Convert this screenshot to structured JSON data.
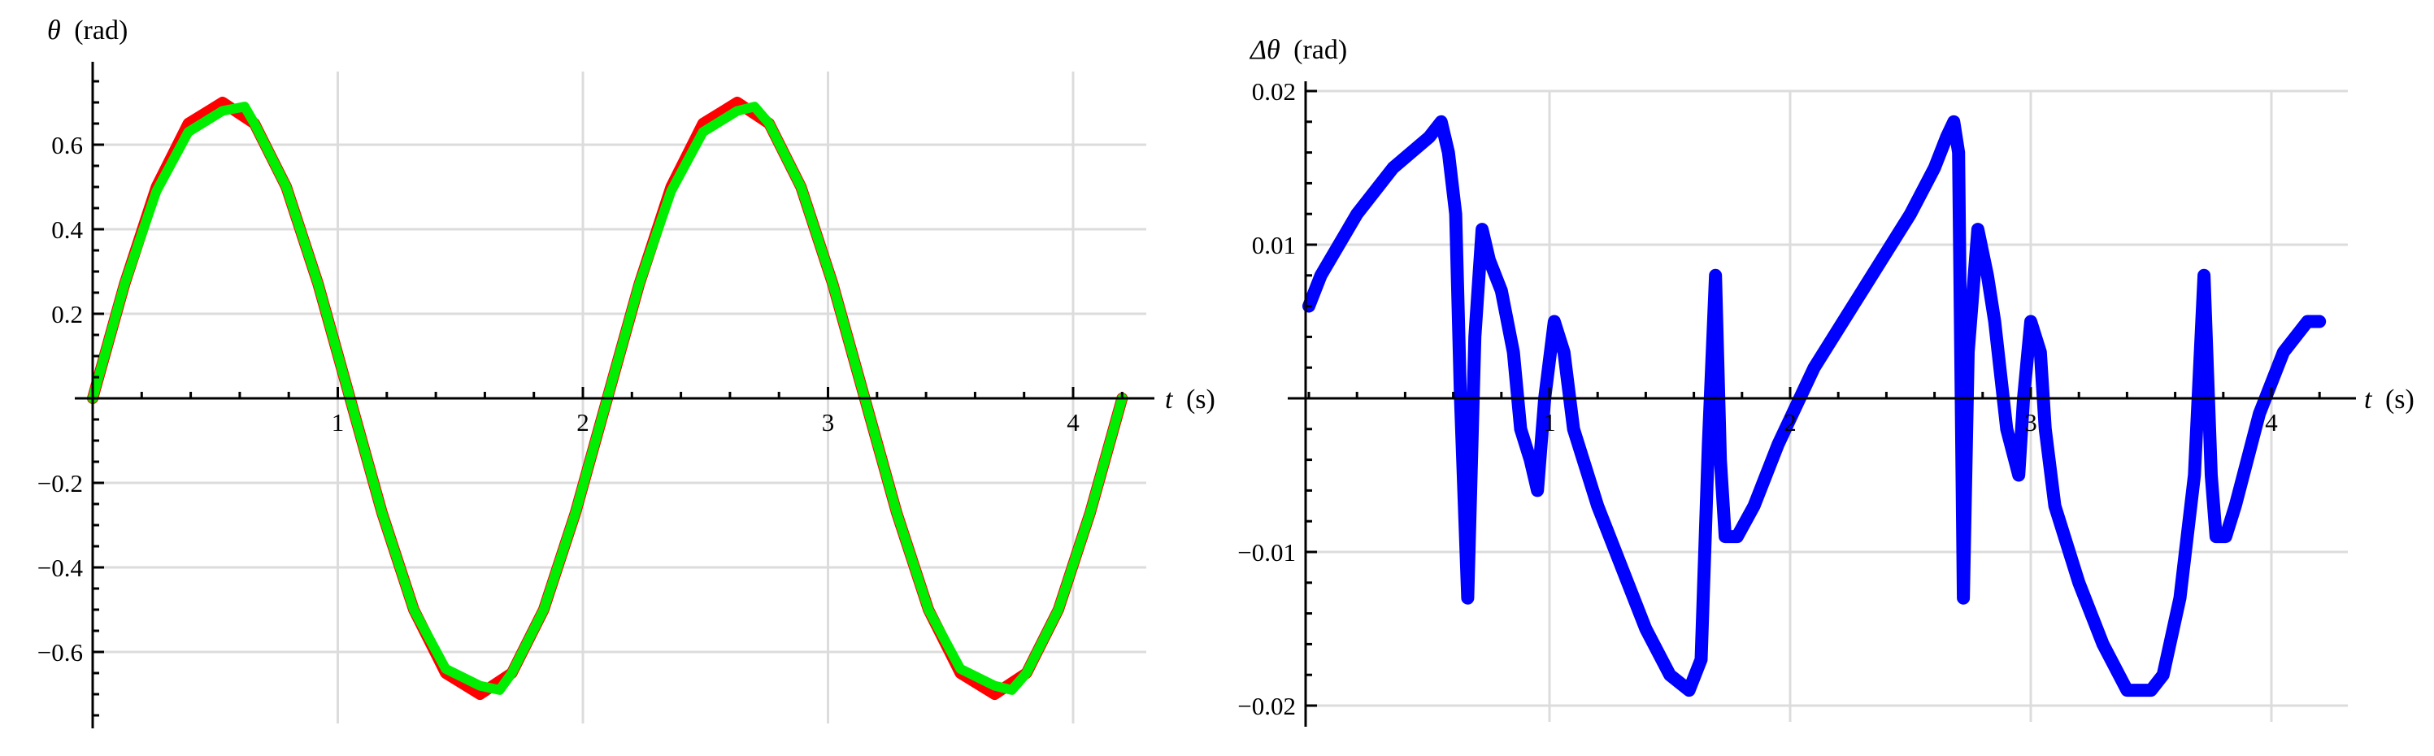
{
  "chart_data": [
    {
      "type": "line",
      "title": "",
      "ylabel_symbol": "θ",
      "ylabel_unit": "(rad)",
      "xlabel_symbol": "t",
      "xlabel_unit": "(s)",
      "xlim": [
        0,
        4.25
      ],
      "ylim": [
        -0.76,
        0.76
      ],
      "x_ticks": [
        1,
        2,
        3,
        4
      ],
      "x_tick_labels": [
        "1",
        "2",
        "3",
        "4"
      ],
      "y_ticks": [
        -0.6,
        -0.4,
        -0.2,
        0.2,
        0.4,
        0.6
      ],
      "y_tick_labels": [
        "−0.6",
        "−0.4",
        "−0.2",
        "0.2",
        "0.4",
        "0.6"
      ],
      "grid": true,
      "series": [
        {
          "color": "#ff0000",
          "x": [
            0,
            0.13,
            0.26,
            0.39,
            0.53,
            0.66,
            0.79,
            0.92,
            1.05,
            1.18,
            1.31,
            1.44,
            1.58,
            1.71,
            1.84,
            1.97,
            2.1,
            2.23,
            2.36,
            2.49,
            2.63,
            2.76,
            2.89,
            3.02,
            3.15,
            3.28,
            3.41,
            3.54,
            3.68,
            3.81,
            3.94,
            4.07,
            4.2
          ],
          "y": [
            0,
            0.27,
            0.5,
            0.65,
            0.7,
            0.65,
            0.5,
            0.27,
            0,
            -0.27,
            -0.5,
            -0.65,
            -0.7,
            -0.65,
            -0.5,
            -0.27,
            0,
            0.27,
            0.5,
            0.65,
            0.7,
            0.65,
            0.5,
            0.27,
            0,
            -0.27,
            -0.5,
            -0.65,
            -0.7,
            -0.65,
            -0.5,
            -0.27,
            0
          ]
        },
        {
          "color": "#00ee00",
          "x": [
            0,
            0.13,
            0.26,
            0.39,
            0.53,
            0.62,
            0.66,
            0.79,
            0.92,
            1.05,
            1.18,
            1.31,
            1.44,
            1.58,
            1.66,
            1.71,
            1.84,
            1.97,
            2.1,
            2.23,
            2.36,
            2.49,
            2.63,
            2.7,
            2.76,
            2.89,
            3.02,
            3.15,
            3.28,
            3.41,
            3.54,
            3.68,
            3.75,
            3.81,
            3.94,
            4.07,
            4.2
          ],
          "y": [
            0,
            0.27,
            0.49,
            0.63,
            0.68,
            0.69,
            0.65,
            0.5,
            0.27,
            0,
            -0.27,
            -0.5,
            -0.64,
            -0.68,
            -0.69,
            -0.65,
            -0.5,
            -0.27,
            0,
            0.27,
            0.49,
            0.63,
            0.68,
            0.69,
            0.65,
            0.5,
            0.27,
            0,
            -0.27,
            -0.5,
            -0.64,
            -0.68,
            -0.69,
            -0.65,
            -0.5,
            -0.27,
            0
          ]
        }
      ]
    },
    {
      "type": "line",
      "title": "",
      "ylabel_symbol": "Δθ",
      "ylabel_unit": "(rad)",
      "xlabel_symbol": "t",
      "xlabel_unit": "(s)",
      "xlim": [
        -1.0,
        4.25
      ],
      "ylim": [
        -0.0222,
        0.02
      ],
      "x_ticks": [
        1,
        2,
        3,
        4
      ],
      "x_tick_labels": [
        "1",
        "2",
        "3",
        "4"
      ],
      "y_ticks": [
        -0.02,
        -0.01,
        0.01,
        0.02
      ],
      "y_tick_labels": [
        "−0.02",
        "−0.01",
        "0.01",
        "0.02"
      ],
      "grid": true,
      "series": [
        {
          "color": "#0000ff",
          "x": [
            0,
            0.05,
            0.2,
            0.35,
            0.5,
            0.55,
            0.58,
            0.61,
            0.63,
            0.66,
            0.69,
            0.72,
            0.75,
            0.8,
            0.85,
            0.88,
            0.92,
            0.95,
            0.98,
            1.02,
            1.06,
            1.1,
            1.2,
            1.3,
            1.4,
            1.5,
            1.58,
            1.63,
            1.66,
            1.69,
            1.71,
            1.73,
            1.78,
            1.85,
            1.95,
            2.1,
            2.3,
            2.5,
            2.6,
            2.65,
            2.68,
            2.7,
            2.72,
            2.74,
            2.78,
            2.82,
            2.85,
            2.9,
            2.95,
            2.97,
            3.0,
            3.04,
            3.06,
            3.1,
            3.2,
            3.3,
            3.4,
            3.5,
            3.55,
            3.62,
            3.68,
            3.72,
            3.75,
            3.77,
            3.79,
            3.81,
            3.85,
            3.9,
            3.95,
            4.05,
            4.15,
            4.2
          ],
          "y": [
            0.006,
            0.008,
            0.012,
            0.015,
            0.017,
            0.018,
            0.016,
            0.012,
            0.0,
            -0.013,
            0.004,
            0.011,
            0.009,
            0.007,
            0.003,
            -0.002,
            -0.004,
            -0.006,
            0.0,
            0.005,
            0.003,
            -0.002,
            -0.007,
            -0.011,
            -0.015,
            -0.018,
            -0.019,
            -0.017,
            -0.003,
            0.008,
            -0.004,
            -0.009,
            -0.009,
            -0.007,
            -0.003,
            0.002,
            0.007,
            0.012,
            0.015,
            0.017,
            0.018,
            0.016,
            -0.013,
            0.003,
            0.011,
            0.008,
            0.005,
            -0.002,
            -0.005,
            0.0,
            0.005,
            0.003,
            -0.002,
            -0.007,
            -0.012,
            -0.016,
            -0.019,
            -0.019,
            -0.018,
            -0.013,
            -0.005,
            0.008,
            -0.005,
            -0.009,
            -0.009,
            -0.009,
            -0.007,
            -0.004,
            -0.001,
            0.003,
            0.005,
            0.005
          ]
        }
      ]
    }
  ]
}
